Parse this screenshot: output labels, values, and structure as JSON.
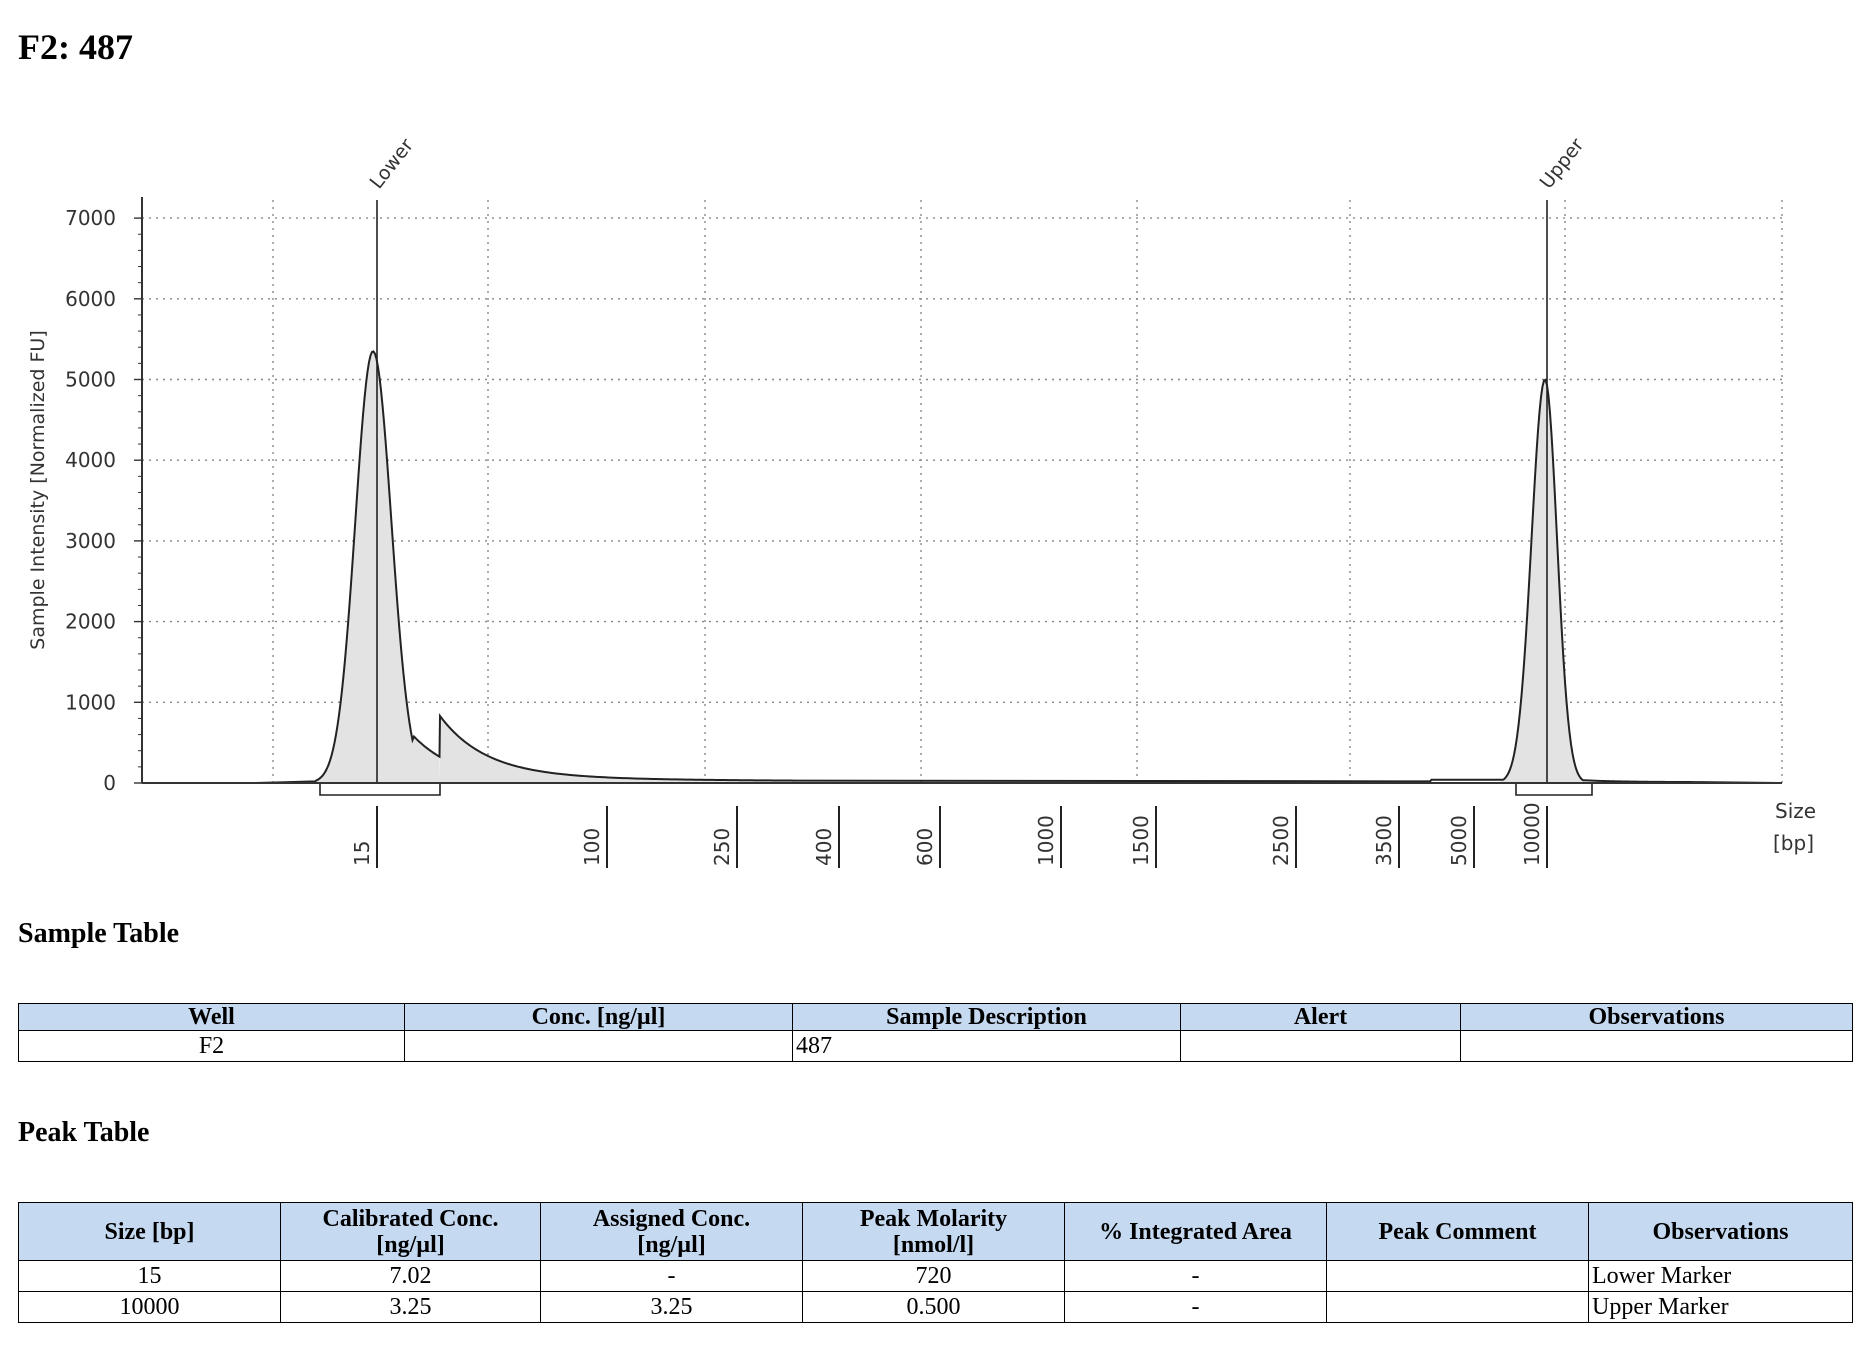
{
  "title": "F2: 487",
  "chart_data": {
    "type": "line",
    "title": "",
    "ylabel": "Sample Intensity [Normalized FU]",
    "xlabel": "Size\n[bp]",
    "ylim": [
      0,
      7300
    ],
    "yticks": [
      0,
      1000,
      2000,
      3000,
      4000,
      5000,
      6000,
      7000
    ],
    "xticks": [
      "15",
      "100",
      "250",
      "400",
      "600",
      "1000",
      "1500",
      "2500",
      "3500",
      "5000",
      "10000"
    ],
    "grid": true,
    "markers": [
      {
        "label": "Lower",
        "size_bp": 15
      },
      {
        "label": "Upper",
        "size_bp": 10000
      }
    ],
    "series": [
      {
        "fill": "#e3e3e3",
        "x": [
          15,
          100,
          250,
          400,
          600,
          1000,
          1500,
          2500,
          3500,
          5000,
          10000
        ],
        "peaks": [
          {
            "size_bp": 15,
            "height": 5350
          },
          {
            "size_bp": 10000,
            "height": 5000
          }
        ]
      }
    ]
  },
  "sample_table": {
    "heading": "Sample Table",
    "headers": [
      "Well",
      "Conc. [ng/µl]",
      "Sample Description",
      "Alert",
      "Observations"
    ],
    "rows": [
      [
        "F2",
        "",
        "487",
        "",
        ""
      ]
    ]
  },
  "peak_table": {
    "heading": "Peak Table",
    "headers": [
      "Size [bp]",
      "Calibrated Conc.\n[ng/µl]",
      "Assigned Conc.\n[ng/µl]",
      "Peak Molarity\n[nmol/l]",
      "% Integrated Area",
      "Peak Comment",
      "Observations"
    ],
    "rows": [
      [
        "15",
        "7.02",
        "-",
        "720",
        "-",
        "",
        "Lower Marker"
      ],
      [
        "10000",
        "3.25",
        "3.25",
        "0.500",
        "-",
        "",
        "Upper Marker"
      ]
    ]
  }
}
